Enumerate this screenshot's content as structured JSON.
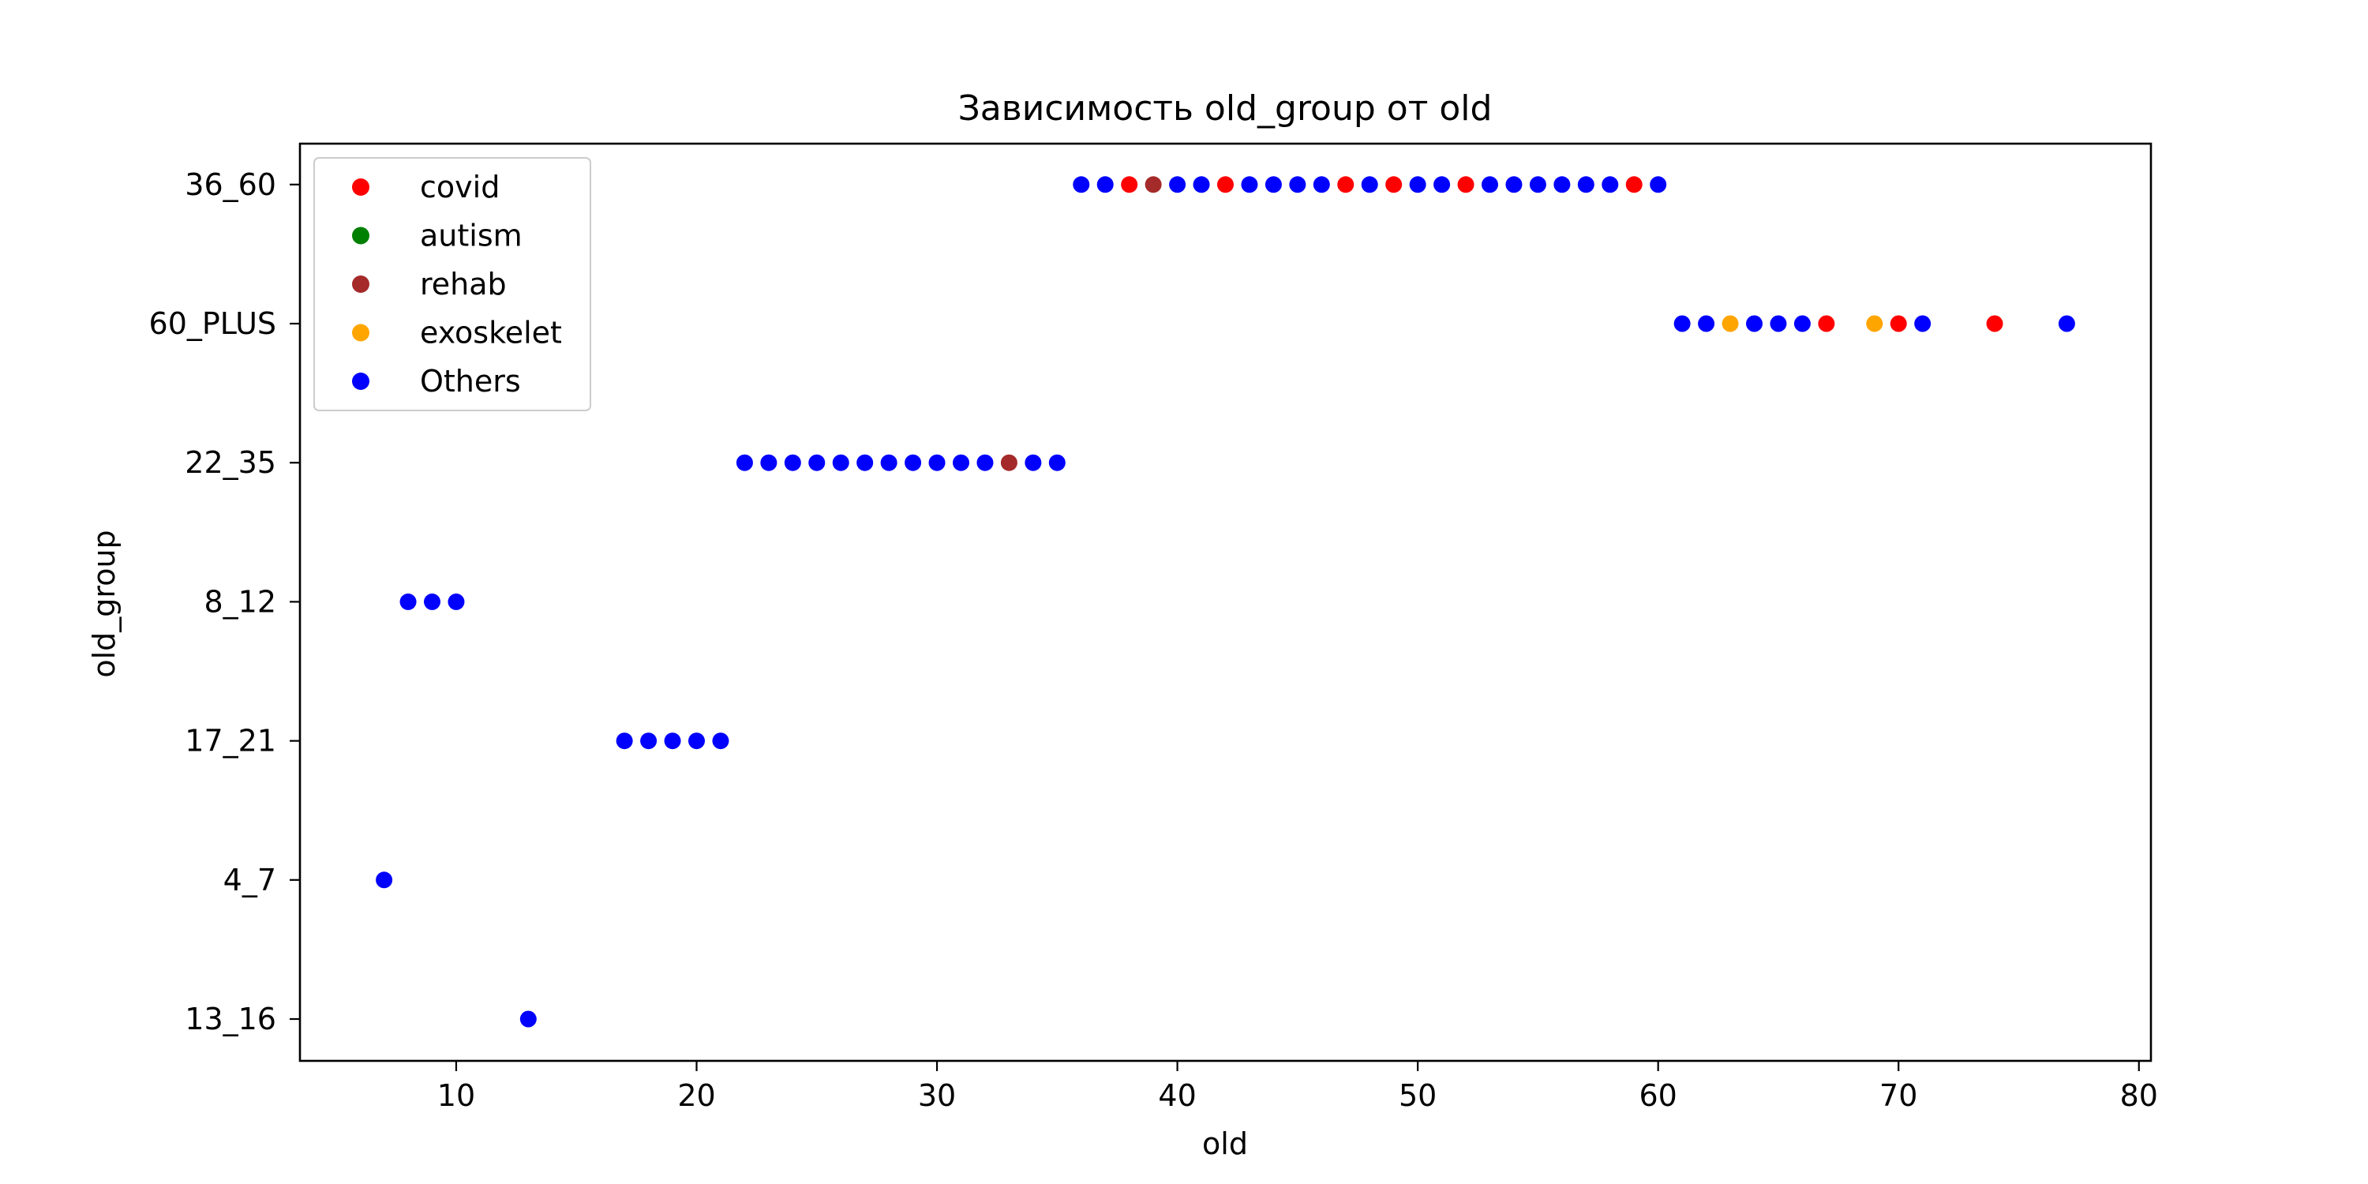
{
  "chart_data": {
    "type": "scatter",
    "title": "Зависимость old_group от old",
    "xlabel": "old",
    "ylabel": "old_group",
    "xlim": [
      3.5,
      80.5
    ],
    "xticks": [
      10,
      20,
      30,
      40,
      50,
      60,
      70,
      80
    ],
    "categories_y": [
      "13_16",
      "4_7",
      "17_21",
      "8_12",
      "22_35",
      "60_PLUS",
      "36_60"
    ],
    "grid": false,
    "legend_position": "top-left",
    "series": [
      {
        "name": "covid",
        "color": "#ff0000",
        "points": [
          {
            "x": 38,
            "y": "36_60"
          },
          {
            "x": 42,
            "y": "36_60"
          },
          {
            "x": 47,
            "y": "36_60"
          },
          {
            "x": 49,
            "y": "36_60"
          },
          {
            "x": 52,
            "y": "36_60"
          },
          {
            "x": 59,
            "y": "36_60"
          },
          {
            "x": 67,
            "y": "60_PLUS"
          },
          {
            "x": 70,
            "y": "60_PLUS"
          },
          {
            "x": 74,
            "y": "60_PLUS"
          }
        ]
      },
      {
        "name": "autism",
        "color": "#008000",
        "points": []
      },
      {
        "name": "rehab",
        "color": "#a52a2a",
        "points": [
          {
            "x": 39,
            "y": "36_60"
          },
          {
            "x": 33,
            "y": "22_35"
          }
        ]
      },
      {
        "name": "exoskelet",
        "color": "#ffa500",
        "points": [
          {
            "x": 63,
            "y": "60_PLUS"
          },
          {
            "x": 69,
            "y": "60_PLUS"
          }
        ]
      },
      {
        "name": "Others",
        "color": "#0000ff",
        "points": [
          {
            "x": 36,
            "y": "36_60"
          },
          {
            "x": 37,
            "y": "36_60"
          },
          {
            "x": 40,
            "y": "36_60"
          },
          {
            "x": 41,
            "y": "36_60"
          },
          {
            "x": 43,
            "y": "36_60"
          },
          {
            "x": 44,
            "y": "36_60"
          },
          {
            "x": 45,
            "y": "36_60"
          },
          {
            "x": 46,
            "y": "36_60"
          },
          {
            "x": 48,
            "y": "36_60"
          },
          {
            "x": 50,
            "y": "36_60"
          },
          {
            "x": 51,
            "y": "36_60"
          },
          {
            "x": 53,
            "y": "36_60"
          },
          {
            "x": 54,
            "y": "36_60"
          },
          {
            "x": 55,
            "y": "36_60"
          },
          {
            "x": 56,
            "y": "36_60"
          },
          {
            "x": 57,
            "y": "36_60"
          },
          {
            "x": 58,
            "y": "36_60"
          },
          {
            "x": 60,
            "y": "36_60"
          },
          {
            "x": 61,
            "y": "60_PLUS"
          },
          {
            "x": 62,
            "y": "60_PLUS"
          },
          {
            "x": 64,
            "y": "60_PLUS"
          },
          {
            "x": 65,
            "y": "60_PLUS"
          },
          {
            "x": 66,
            "y": "60_PLUS"
          },
          {
            "x": 71,
            "y": "60_PLUS"
          },
          {
            "x": 77,
            "y": "60_PLUS"
          },
          {
            "x": 22,
            "y": "22_35"
          },
          {
            "x": 23,
            "y": "22_35"
          },
          {
            "x": 24,
            "y": "22_35"
          },
          {
            "x": 25,
            "y": "22_35"
          },
          {
            "x": 26,
            "y": "22_35"
          },
          {
            "x": 27,
            "y": "22_35"
          },
          {
            "x": 28,
            "y": "22_35"
          },
          {
            "x": 29,
            "y": "22_35"
          },
          {
            "x": 30,
            "y": "22_35"
          },
          {
            "x": 31,
            "y": "22_35"
          },
          {
            "x": 32,
            "y": "22_35"
          },
          {
            "x": 34,
            "y": "22_35"
          },
          {
            "x": 35,
            "y": "22_35"
          },
          {
            "x": 8,
            "y": "8_12"
          },
          {
            "x": 9,
            "y": "8_12"
          },
          {
            "x": 10,
            "y": "8_12"
          },
          {
            "x": 17,
            "y": "17_21"
          },
          {
            "x": 18,
            "y": "17_21"
          },
          {
            "x": 19,
            "y": "17_21"
          },
          {
            "x": 20,
            "y": "17_21"
          },
          {
            "x": 21,
            "y": "17_21"
          },
          {
            "x": 7,
            "y": "4_7"
          },
          {
            "x": 13,
            "y": "13_16"
          }
        ]
      }
    ]
  }
}
